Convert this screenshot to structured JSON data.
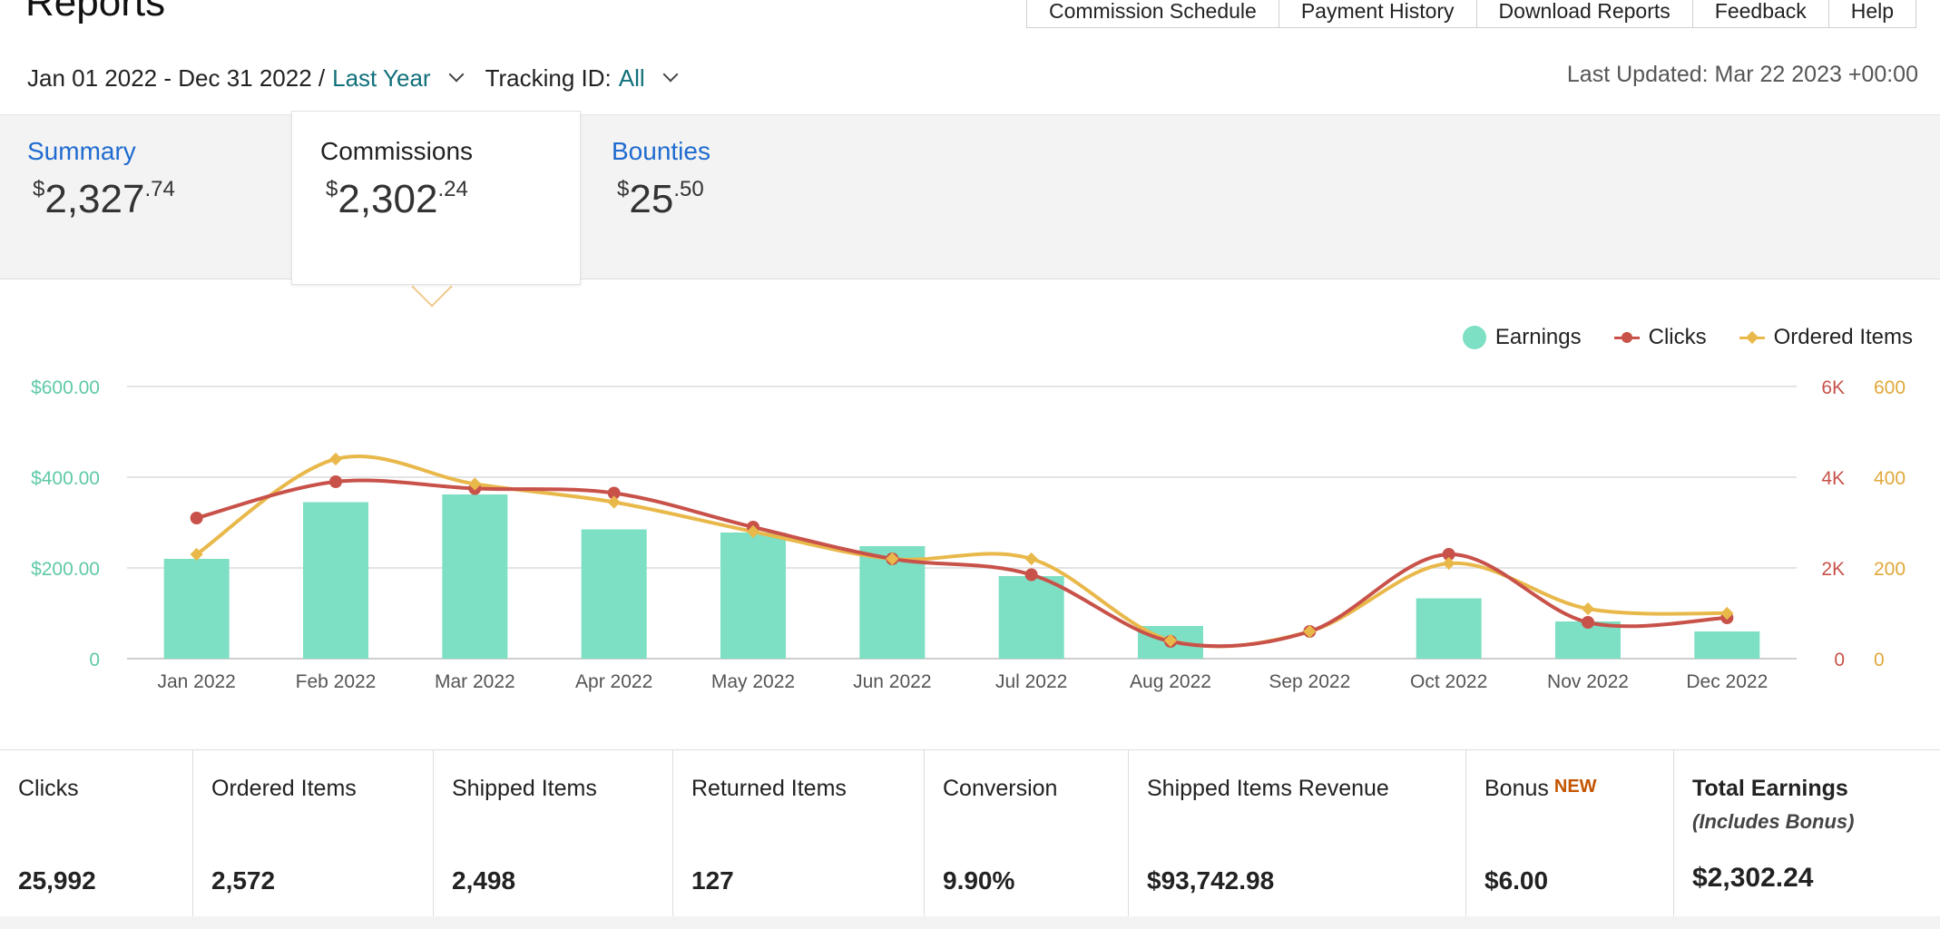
{
  "header": {
    "title": "Reports",
    "nav": [
      "Commission Schedule",
      "Payment History",
      "Download Reports",
      "Feedback",
      "Help"
    ]
  },
  "filters": {
    "date_range": "Jan 01 2022 - Dec 31 2022 /",
    "date_preset": "Last Year",
    "tracking_label": "Tracking ID:",
    "tracking_value": "All",
    "last_updated": "Last Updated: Mar 22 2023 +00:00"
  },
  "tabs": {
    "summary": {
      "label": "Summary",
      "amount": "2,327",
      "cents": ".74",
      "currency": "$"
    },
    "commissions": {
      "label": "Commissions",
      "amount": "2,302",
      "cents": ".24",
      "currency": "$"
    },
    "bounties": {
      "label": "Bounties",
      "amount": "25",
      "cents": ".50",
      "currency": "$"
    }
  },
  "legend": {
    "earnings": "Earnings",
    "clicks": "Clicks",
    "ordered": "Ordered Items"
  },
  "chart_data": {
    "type": "bar",
    "categories": [
      "Jan 2022",
      "Feb 2022",
      "Mar 2022",
      "Apr 2022",
      "May 2022",
      "Jun 2022",
      "Jul 2022",
      "Aug 2022",
      "Sep 2022",
      "Oct 2022",
      "Nov 2022",
      "Dec 2022"
    ],
    "series": [
      {
        "name": "Earnings",
        "type": "bar",
        "axis": "left",
        "color": "#7ddfc3",
        "values": [
          220,
          345,
          362,
          285,
          278,
          248,
          182,
          72,
          0,
          133,
          82,
          60
        ]
      },
      {
        "name": "Clicks",
        "type": "line",
        "axis": "right-clicks",
        "color": "#c8524a",
        "values": [
          3100,
          3900,
          3750,
          3650,
          2900,
          2200,
          1850,
          380,
          600,
          2300,
          800,
          900
        ]
      },
      {
        "name": "Ordered Items",
        "type": "line",
        "axis": "right-items",
        "color": "#e9b84a",
        "values": [
          230,
          440,
          385,
          345,
          280,
          220,
          220,
          40,
          60,
          210,
          110,
          100
        ]
      }
    ],
    "left_axis": {
      "ticks": [
        "0",
        "$200.00",
        "$400.00",
        "$600.00"
      ],
      "range": [
        0,
        600
      ],
      "color": "#5fc9a8"
    },
    "right_axis_clicks": {
      "ticks": [
        "0",
        "2K",
        "4K",
        "6K"
      ],
      "range": [
        0,
        6000
      ],
      "color": "#c8524a"
    },
    "right_axis_items": {
      "ticks": [
        "0",
        "200",
        "400",
        "600"
      ],
      "range": [
        0,
        600
      ],
      "color": "#e0a83a"
    },
    "grid": true,
    "legend_position": "top-right"
  },
  "stats": [
    {
      "label": "Clicks",
      "value": "25,992"
    },
    {
      "label": "Ordered Items",
      "value": "2,572"
    },
    {
      "label": "Shipped Items",
      "value": "2,498"
    },
    {
      "label": "Returned Items",
      "value": "127"
    },
    {
      "label": "Conversion",
      "value": "9.90%"
    },
    {
      "label": "Shipped Items Revenue",
      "value": "$93,742.98"
    },
    {
      "label": "Bonus",
      "badge": "NEW",
      "value": "$6.00"
    },
    {
      "label": "Total Earnings",
      "sub": "(Includes Bonus)",
      "value": "$2,302.24"
    }
  ]
}
